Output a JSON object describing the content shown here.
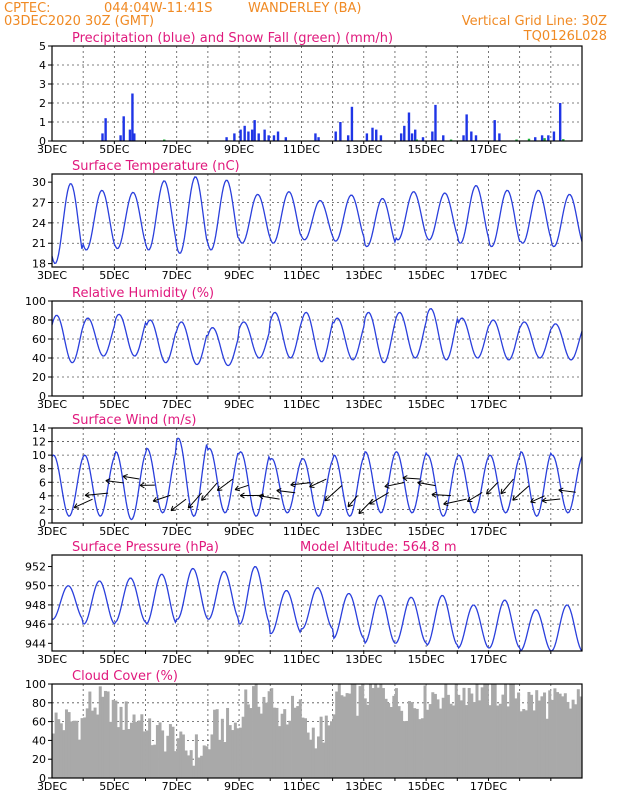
{
  "header": {
    "source": "CPTEC:",
    "location_coords": "044:04W-11:41S",
    "station": "WANDERLEY (BA)",
    "run": "03DEC2020 30Z (GMT)",
    "grid_note": "Vertical Grid Line: 30Z",
    "model_code": "TQ0126L028"
  },
  "x_ticks": [
    "3DEC",
    "5DEC",
    "7DEC",
    "9DEC",
    "11DEC",
    "13DEC",
    "15DEC",
    "17DEC"
  ],
  "colors": {
    "title": "#e0197d",
    "header": "#f08a24",
    "line": "#2a3fdc",
    "precip": "#1f35e6",
    "snow": "#1db33a",
    "cloud": "#a9a9a9",
    "arrow": "#000000"
  },
  "chart_data": [
    {
      "id": "precip",
      "type": "bar",
      "title": "Precipitation (blue) and Snow Fall (green) (mm/h)",
      "ylim": [
        0,
        5
      ],
      "yticks": [
        0,
        1,
        2,
        3,
        4,
        5
      ],
      "x_days": [
        2.62,
        2.72,
        3.2,
        3.3,
        3.5,
        3.58,
        3.64,
        6.6,
        6.85,
        7.05,
        7.18,
        7.3,
        7.42,
        7.5,
        7.63,
        7.82,
        7.95,
        8.12,
        8.25,
        8.5,
        9.45,
        9.55,
        10.1,
        10.25,
        10.5,
        10.62,
        11.1,
        11.28,
        11.4,
        11.55,
        12.2,
        12.3,
        12.45,
        12.55,
        12.65,
        12.9,
        13.2,
        13.3,
        13.55,
        14.2,
        14.3,
        14.45,
        14.6,
        15.2,
        15.35,
        16.5,
        16.72,
        16.92,
        17.1,
        17.3
      ],
      "values": [
        0.4,
        1.2,
        0.3,
        1.3,
        0.6,
        2.5,
        0.4,
        0.2,
        0.4,
        0.6,
        0.8,
        0.5,
        0.6,
        1.1,
        0.4,
        0.6,
        0.3,
        0.3,
        0.5,
        0.2,
        0.4,
        0.2,
        0.5,
        1.0,
        0.3,
        1.8,
        0.4,
        0.7,
        0.6,
        0.3,
        0.4,
        0.8,
        1.5,
        0.4,
        0.6,
        0.2,
        0.5,
        1.9,
        0.3,
        0.3,
        1.4,
        0.5,
        0.3,
        1.1,
        0.4,
        0.2,
        0.3,
        0.3,
        0.5,
        2.0
      ],
      "snow_days": [
        4.6,
        12.7,
        13.8,
        15.9,
        16.3,
        16.8,
        17.4
      ],
      "snow_values": [
        0.05,
        0.05,
        0.05,
        0.08,
        0.12,
        0.15,
        0.1
      ]
    },
    {
      "id": "temp",
      "type": "line",
      "title": "Surface Temperature (nC)",
      "ylim": [
        17.5,
        31.2
      ],
      "yticks": [
        18,
        21,
        24,
        27,
        30
      ],
      "daily_max": [
        29.8,
        28.8,
        28.5,
        30.2,
        30.8,
        30.3,
        28.2,
        28.6,
        27.3,
        28.1,
        27.6,
        28.6,
        28.4,
        29.5,
        28.8,
        28.8,
        28.2,
        28.1
      ],
      "daily_min": [
        18.0,
        20.0,
        20.2,
        20.0,
        19.5,
        20.0,
        21.0,
        21.0,
        21.5,
        21.3,
        20.5,
        21.5,
        21.5,
        21.0,
        20.5,
        21.0,
        20.5,
        21.0
      ]
    },
    {
      "id": "rh",
      "type": "line",
      "title": "Relative Humidity (%)",
      "ylim": [
        0,
        100
      ],
      "yticks": [
        0,
        20,
        40,
        60,
        80,
        100
      ],
      "daily_max": [
        85,
        82,
        86,
        80,
        78,
        72,
        78,
        88,
        88,
        82,
        88,
        88,
        92,
        82,
        80,
        78,
        76,
        70
      ],
      "daily_min": [
        35,
        42,
        42,
        35,
        33,
        32,
        40,
        40,
        36,
        38,
        35,
        40,
        38,
        40,
        38,
        40,
        38,
        40
      ]
    },
    {
      "id": "wind",
      "type": "line",
      "title": "Surface Wind (m/s)",
      "ylim": [
        0,
        14
      ],
      "yticks": [
        0,
        2,
        4,
        6,
        8,
        10,
        12,
        14
      ],
      "daily_max": [
        10.0,
        10.0,
        10.5,
        11.0,
        12.5,
        11.0,
        10.5,
        9.5,
        9.5,
        10.0,
        10.5,
        10.5,
        10.0,
        10.0,
        10.0,
        10.5,
        10.0,
        10.0
      ],
      "daily_min": [
        1.0,
        1.0,
        0.5,
        1.5,
        1.0,
        1.5,
        1.0,
        1.5,
        1.0,
        1.0,
        1.5,
        1.5,
        1.0,
        1.5,
        1.5,
        1.0,
        1.5,
        1.5
      ]
    },
    {
      "id": "pressure",
      "type": "line",
      "title": "Surface Pressure (hPa)",
      "annotation": "Model Altitude: 564.8 m",
      "ylim": [
        943.2,
        953.2
      ],
      "yticks": [
        944,
        946,
        948,
        950,
        952
      ],
      "daily_max": [
        950.0,
        950.5,
        950.8,
        951.2,
        951.8,
        951.5,
        952.0,
        949.5,
        949.8,
        949.2,
        949.0,
        948.8,
        949.0,
        948.0,
        948.5,
        947.5,
        948.0,
        947.5
      ],
      "daily_min": [
        946.5,
        946.0,
        946.2,
        946.0,
        946.5,
        946.5,
        946.0,
        945.0,
        945.5,
        944.5,
        944.0,
        944.0,
        943.8,
        943.5,
        943.5,
        943.2,
        943.2,
        944.0
      ]
    },
    {
      "id": "cloud",
      "type": "bar",
      "title": "Cloud Cover (%)",
      "ylim": [
        0,
        100
      ],
      "yticks": [
        0,
        20,
        40,
        60,
        80,
        100
      ],
      "daily_mean": [
        60,
        78,
        65,
        45,
        30,
        55,
        85,
        70,
        50,
        85,
        92,
        80,
        90,
        95,
        92,
        82,
        78,
        80
      ]
    }
  ]
}
